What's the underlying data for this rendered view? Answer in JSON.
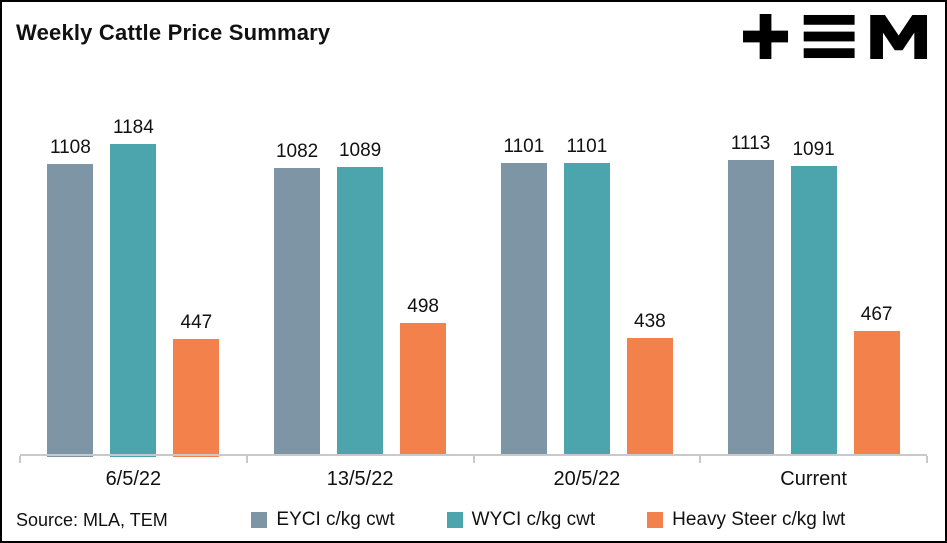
{
  "page": {
    "title": "Weekly Cattle Price Summary",
    "source": "Source: MLA, TEM",
    "logo_name": "TEM"
  },
  "chart_data": {
    "type": "bar",
    "title": "Weekly Cattle Price Summary",
    "categories": [
      "6/5/22",
      "13/5/22",
      "20/5/22",
      "Current"
    ],
    "series": [
      {
        "name": "EYCI c/kg cwt",
        "color": "#7d95a4",
        "values": [
          1108,
          1082,
          1101,
          1113
        ]
      },
      {
        "name": "WYCI c/kg cwt",
        "color": "#4ca5ac",
        "values": [
          1184,
          1089,
          1101,
          1091
        ]
      },
      {
        "name": "Heavy Steer c/kg lwt",
        "color": "#f3814b",
        "values": [
          447,
          498,
          438,
          467
        ]
      }
    ],
    "xlabel": "",
    "ylabel": "",
    "ylim": [
      0,
      1250
    ],
    "grid": false,
    "data_labels": true,
    "legend_position": "bottom",
    "axis_color": "#c9c9c9"
  }
}
